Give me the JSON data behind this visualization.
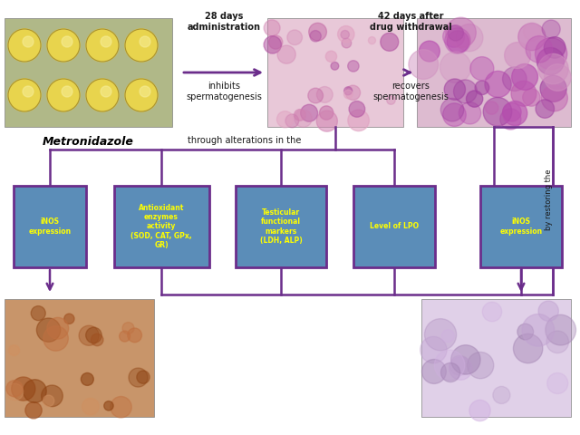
{
  "purple": "#6B2D8B",
  "blue_box": "#5B8DB8",
  "yellow_text": "#FFFF00",
  "black_text": "#1a1a1a",
  "metronidazole_text": "Metronidazole",
  "through_text": "through alterations in the",
  "by_restoring_text": "by restoring the",
  "arrow1_text1": "28 days",
  "arrow1_text2": "administration",
  "arrow1_text3": "inhibits",
  "arrow1_text4": "spermatogenesis",
  "arrow2_text1": "42 days after",
  "arrow2_text2": "drug withdrawal",
  "arrow2_text3": "recovers",
  "arrow2_text4": "spermatogenesis",
  "box_labels": [
    "iNOS\nexpression",
    "Antioxidant\nenzymes\nactivity\n(SOD, CAT, GPx,\nGR)",
    "Testicular\nfunctional\nmarkers\n(LDH, ALP)",
    "Level of LPO",
    "iNOS\nexpression"
  ],
  "pill_color": "#e8d44d",
  "pill_bg": "#b8b890",
  "hist1_color": "#e8c0d0",
  "hist2_color": "#e0b8cc",
  "hist3_color": "#c8956a",
  "hist4_color": "#ddc8d8"
}
